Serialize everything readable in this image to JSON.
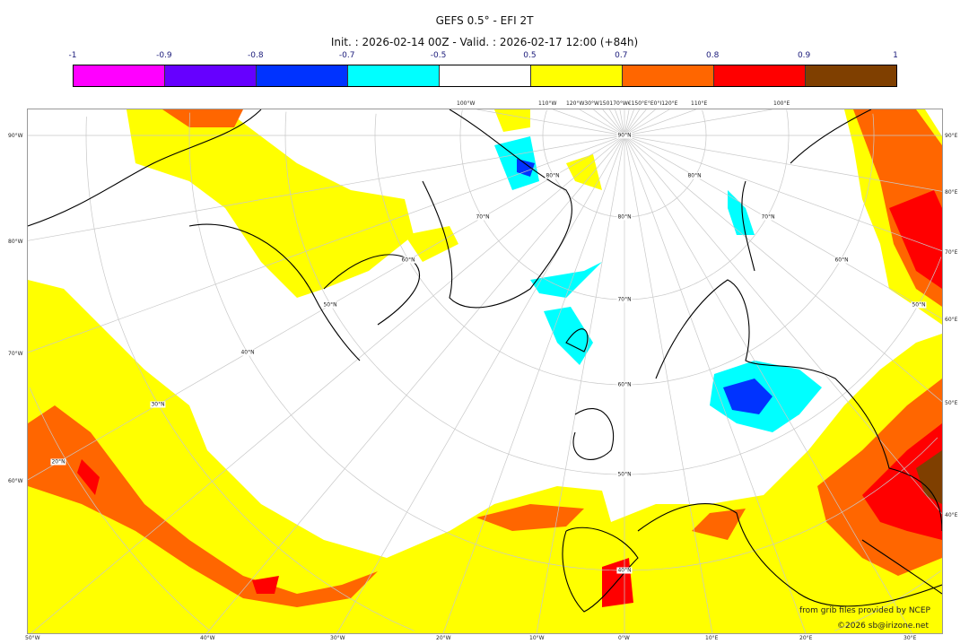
{
  "title": "GEFS 0.5° - EFI 2T",
  "subtitle": "Init. : 2026-02-14 00Z - Valid. : 2026-02-17 12:00 (+84h)",
  "colorbar": {
    "ticks": [
      "-1",
      "-0.9",
      "-0.8",
      "-0.7",
      "-0.5",
      "0.5",
      "0.7",
      "0.8",
      "0.9",
      "1"
    ],
    "colors": [
      "#ff00ff",
      "#6600ff",
      "#0033ff",
      "#00ffff",
      "#ffffff",
      "#ffff00",
      "#ff6600",
      "#ff0000",
      "#7f3f00"
    ]
  },
  "map": {
    "top_labels": [
      "100°W",
      "110°W",
      "120°W30°W150170°W€150°E°E0°I120°E",
      "110°E",
      "100°E"
    ],
    "left_labels": [
      "90°W",
      "80°W",
      "70°W",
      "60°W"
    ],
    "right_labels": [
      "90°E",
      "80°E",
      "70°E",
      "60°E",
      "50°E",
      "40°E"
    ],
    "bottom_labels": [
      "50°W",
      "40°W",
      "30°W",
      "20°W",
      "10°W",
      "0°W",
      "10°E",
      "20°E",
      "30°E"
    ],
    "lat_labels": [
      "90°N",
      "80°N",
      "70°N",
      "60°N",
      "50°N",
      "40°N",
      "80°N",
      "70°N",
      "60°N",
      "50°N",
      "40°N",
      "30°N",
      "20°N",
      "80°N",
      "70°N",
      "60°N",
      "50°N"
    ]
  },
  "credits": {
    "source": "from grib files provided by NCEP",
    "copyright": "©2026 sb@irizone.net"
  }
}
